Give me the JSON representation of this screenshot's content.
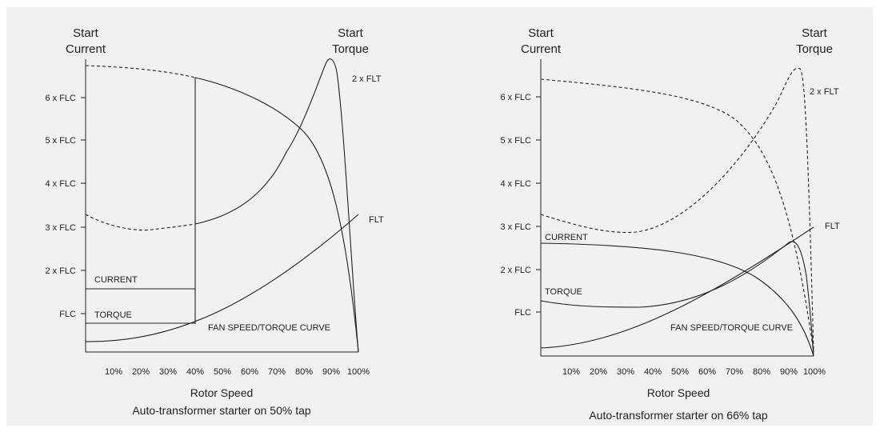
{
  "panels": [
    {
      "left_header": [
        "Start",
        "Current"
      ],
      "right_header": [
        "Start",
        "Torque"
      ],
      "y_ticks": [
        "FLC",
        "2 x FLC",
        "3 x FLC",
        "4 x FLC",
        "5 x FLC",
        "6 x FLC"
      ],
      "x_ticks": [
        "10%",
        "20%",
        "30%",
        "40%",
        "50%",
        "60%",
        "70%",
        "80%",
        "90%",
        "100%"
      ],
      "curve_labels": {
        "two_flt": "2 x FLT",
        "flt": "FLT",
        "current": "CURRENT",
        "torque": "TORQUE",
        "fan": "FAN SPEED/TORQUE CURVE"
      },
      "x_title": "Rotor Speed",
      "caption": "Auto-transformer starter on 50% tap"
    },
    {
      "left_header": [
        "Start",
        "Current"
      ],
      "right_header": [
        "Start",
        "Torque"
      ],
      "y_ticks": [
        "FLC",
        "2 x FLC",
        "3 x FLC",
        "4 x FLC",
        "5 x FLC",
        "6 x FLC"
      ],
      "x_ticks": [
        "10%",
        "20%",
        "30%",
        "40%",
        "50%",
        "60%",
        "70%",
        "80%",
        "90%",
        "100%"
      ],
      "curve_labels": {
        "two_flt": "2 x FLT",
        "flt": "FLT",
        "current": "CURRENT",
        "torque": "TORQUE",
        "fan": "FAN SPEED/TORQUE CURVE"
      },
      "x_title": "Rotor Speed",
      "caption": "Auto-transformer starter on 66% tap"
    }
  ],
  "colors": {
    "background": "#f1f1f1",
    "ink": "#222222"
  }
}
